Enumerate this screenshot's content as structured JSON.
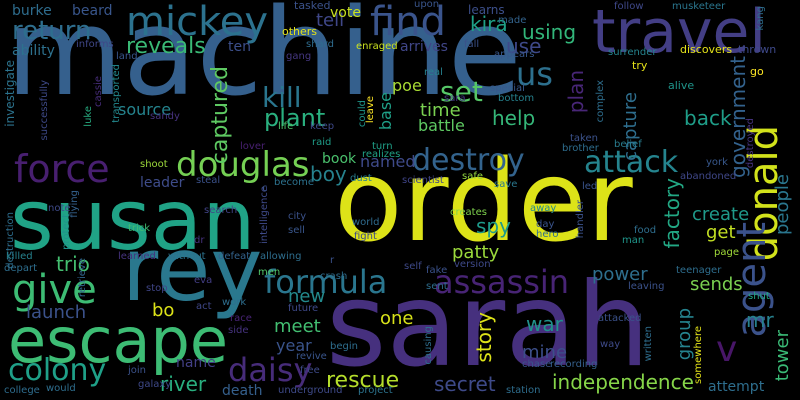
{
  "words": [
    {
      "t": "machine",
      "c": "#35608d"
    },
    {
      "t": "order",
      "c": "#dde318"
    },
    {
      "t": "sarah",
      "c": "#46307e"
    },
    {
      "t": "susan",
      "c": "#20a386"
    },
    {
      "t": "rey",
      "c": "#2a788e"
    },
    {
      "t": "travel",
      "c": "#433e85"
    },
    {
      "t": "escape",
      "c": "#3dbc74"
    },
    {
      "t": "mickey",
      "c": "#2c728e"
    },
    {
      "t": "find",
      "c": "#3a548c"
    },
    {
      "t": "donald",
      "c": "#d2e21b"
    },
    {
      "t": "agent",
      "c": "#3b528b"
    },
    {
      "t": "force",
      "c": "#481f70"
    },
    {
      "t": "douglas",
      "c": "#75d054"
    },
    {
      "t": "formula",
      "c": "#2a768e"
    },
    {
      "t": "give",
      "c": "#3dbc74"
    },
    {
      "t": "assassin",
      "c": "#482475"
    },
    {
      "t": "destroy",
      "c": "#33638d"
    },
    {
      "t": "attack",
      "c": "#25848e"
    },
    {
      "t": "colony",
      "c": "#1fa088"
    },
    {
      "t": "daisy",
      "c": "#472c7a"
    },
    {
      "t": "return",
      "c": "#2e6e8e"
    },
    {
      "t": "kill",
      "c": "#2a768e"
    },
    {
      "t": "us",
      "c": "#2d708e"
    },
    {
      "t": "set",
      "c": "#56c667"
    },
    {
      "t": "plant",
      "c": "#2ab07f"
    },
    {
      "t": "reveals",
      "c": "#3aba76"
    },
    {
      "t": "captured",
      "c": "#5ec962"
    },
    {
      "t": "government",
      "c": "#33628d"
    },
    {
      "t": "rescue",
      "c": "#b5de2b"
    },
    {
      "t": "secret",
      "c": "#3e4a89"
    },
    {
      "t": "independence",
      "c": "#86d549"
    },
    {
      "t": "river",
      "c": "#29af7f"
    },
    {
      "t": "kira",
      "c": "#1fa187"
    },
    {
      "t": "using",
      "c": "#32b67a"
    },
    {
      "t": "plan",
      "c": "#482677"
    },
    {
      "t": "spy",
      "c": "#1e9b8a"
    },
    {
      "t": "patty",
      "c": "#9bd93c"
    },
    {
      "t": "story",
      "c": "#dde318"
    },
    {
      "t": "war",
      "c": "#21918c"
    },
    {
      "t": "mine",
      "c": "#3c4f8a"
    },
    {
      "t": "help",
      "c": "#35b779"
    },
    {
      "t": "time",
      "c": "#7ad151"
    },
    {
      "t": "battle",
      "c": "#5ec962"
    },
    {
      "t": "poe",
      "c": "#a8db34"
    },
    {
      "t": "named",
      "c": "#3e4a89"
    },
    {
      "t": "boy",
      "c": "#26828e"
    },
    {
      "t": "book",
      "c": "#4ac16d"
    },
    {
      "t": "base",
      "c": "#1fa088"
    },
    {
      "t": "use",
      "c": "#3e4989"
    },
    {
      "t": "tell",
      "c": "#3f4788"
    },
    {
      "t": "arrives",
      "c": "#404688"
    },
    {
      "t": "back",
      "c": "#1f9e89"
    },
    {
      "t": "create",
      "c": "#1f9a8a"
    },
    {
      "t": "get",
      "c": "#c2df23"
    },
    {
      "t": "people",
      "c": "#2a768e"
    },
    {
      "t": "factory",
      "c": "#22a884"
    },
    {
      "t": "capture",
      "c": "#2e6e8e"
    },
    {
      "t": "sends",
      "c": "#7ad151"
    },
    {
      "t": "power",
      "c": "#2e6f8e"
    },
    {
      "t": "group",
      "c": "#25838e"
    },
    {
      "t": "mr",
      "c": "#26818e"
    },
    {
      "t": "tower",
      "c": "#3aba76"
    },
    {
      "t": "v",
      "c": "#481668"
    },
    {
      "t": "one",
      "c": "#d8e219"
    },
    {
      "t": "meet",
      "c": "#42be71"
    },
    {
      "t": "new",
      "c": "#238a8d"
    },
    {
      "t": "year",
      "c": "#3a548c"
    },
    {
      "t": "bo",
      "c": "#dde318"
    },
    {
      "t": "trio",
      "c": "#44bf70"
    },
    {
      "t": "launch",
      "c": "#3b528b"
    },
    {
      "t": "source",
      "c": "#25848e"
    },
    {
      "t": "leader",
      "c": "#3e4c8a"
    },
    {
      "t": "name",
      "c": "#423f85"
    },
    {
      "t": "ability",
      "c": "#2d718e"
    },
    {
      "t": "burke",
      "c": "#2e6d8e"
    },
    {
      "t": "beard",
      "c": "#39568c"
    },
    {
      "t": "ten",
      "c": "#3c4f8a"
    },
    {
      "t": "vote",
      "c": "#c8e020"
    },
    {
      "t": "tasked",
      "c": "#3b528b"
    },
    {
      "t": "others",
      "c": "#e5e419"
    },
    {
      "t": "learns",
      "c": "#3c4f8a"
    },
    {
      "t": "made",
      "c": "#33638d"
    },
    {
      "t": "follow",
      "c": "#3f4889"
    },
    {
      "t": "musketeer",
      "c": "#2a768e"
    },
    {
      "t": "kang",
      "c": "#2e6e8e"
    },
    {
      "t": "surrender",
      "c": "#25848e"
    },
    {
      "t": "discovers",
      "c": "#e5e419"
    },
    {
      "t": "thrown",
      "c": "#3e4989"
    },
    {
      "t": "alive",
      "c": "#1f958b"
    },
    {
      "t": "try",
      "c": "#e7e419"
    },
    {
      "t": "go",
      "c": "#fde725"
    },
    {
      "t": "upon",
      "c": "#39558c"
    },
    {
      "t": "fall",
      "c": "#3b528b"
    },
    {
      "t": "appears",
      "c": "#38588c"
    },
    {
      "t": "enraged",
      "c": "#cae11f"
    },
    {
      "t": "shard",
      "c": "#2f6c8e"
    },
    {
      "t": "gang",
      "c": "#453781"
    },
    {
      "t": "land",
      "c": "#39568c"
    },
    {
      "t": "informs",
      "c": "#3f4788"
    },
    {
      "t": "investigate",
      "c": "#2c738e"
    },
    {
      "t": "successfully",
      "c": "#3e4a89"
    },
    {
      "t": "cassie",
      "c": "#472d7b"
    },
    {
      "t": "luke",
      "c": "#27ad81"
    },
    {
      "t": "transported",
      "c": "#23898e"
    },
    {
      "t": "sandy",
      "c": "#46327e"
    },
    {
      "t": "lover",
      "c": "#482071"
    },
    {
      "t": "life",
      "c": "#4ec36b"
    },
    {
      "t": "keep",
      "c": "#3e4989"
    },
    {
      "t": "raid",
      "c": "#1f9e89"
    },
    {
      "t": "could",
      "c": "#1f958b"
    },
    {
      "t": "leave",
      "c": "#fde725"
    },
    {
      "t": "real",
      "c": "#26818e"
    },
    {
      "t": "sara",
      "c": "#453882"
    },
    {
      "t": "special",
      "c": "#38598c"
    },
    {
      "t": "bottom",
      "c": "#26828e"
    },
    {
      "t": "complex",
      "c": "#2e6e8e"
    },
    {
      "t": "taken",
      "c": "#3b528b"
    },
    {
      "t": "brother",
      "c": "#2e6d8e"
    },
    {
      "t": "belief",
      "c": "#287c8e"
    },
    {
      "t": "york",
      "c": "#38588c"
    },
    {
      "t": "abandoned",
      "c": "#3f4788"
    },
    {
      "t": "destroyed",
      "c": "#46337f"
    },
    {
      "t": "turn",
      "c": "#1fa088"
    },
    {
      "t": "realizes",
      "c": "#20a386"
    },
    {
      "t": "scientist",
      "c": "#404588"
    },
    {
      "t": "safe",
      "c": "#95d840"
    },
    {
      "t": "save",
      "c": "#2a788e"
    },
    {
      "t": "led",
      "c": "#3a548c"
    },
    {
      "t": "dust",
      "c": "#287d8e"
    },
    {
      "t": "shoot",
      "c": "#9dd93b"
    },
    {
      "t": "steal",
      "c": "#3b528b"
    },
    {
      "t": "become",
      "c": "#2c728e"
    },
    {
      "t": "note",
      "c": "#3e4a89"
    },
    {
      "t": "flying",
      "c": "#34618d"
    },
    {
      "t": "protect",
      "c": "#20928c"
    },
    {
      "t": "destruction",
      "c": "#2e6e8e"
    },
    {
      "t": "trick",
      "c": "#3fbc73"
    },
    {
      "t": "search",
      "c": "#414487"
    },
    {
      "t": "city",
      "c": "#3b528b"
    },
    {
      "t": "sell",
      "c": "#39568c"
    },
    {
      "t": "world",
      "c": "#2f6b8e"
    },
    {
      "t": "fight",
      "c": "#3e4a89"
    },
    {
      "t": "creates",
      "c": "#7fd34e"
    },
    {
      "t": "away",
      "c": "#23898e"
    },
    {
      "t": "day",
      "c": "#3a548c"
    },
    {
      "t": "hero",
      "c": "#2e6d8e"
    },
    {
      "t": "handler",
      "c": "#3b528b"
    },
    {
      "t": "man",
      "c": "#1f968b"
    },
    {
      "t": "food",
      "c": "#2e6e8e"
    },
    {
      "t": "page",
      "c": "#a0da39"
    },
    {
      "t": "teenager",
      "c": "#2e6e8e"
    },
    {
      "t": "leaving",
      "c": "#3b528b"
    },
    {
      "t": "shut",
      "c": "#22a884"
    },
    {
      "t": "killed",
      "c": "#26828e"
    },
    {
      "t": "depart",
      "c": "#2e6e8e"
    },
    {
      "t": "retrieve",
      "c": "#32648e"
    },
    {
      "t": "learned",
      "c": "#46337f"
    },
    {
      "t": "without",
      "c": "#2c738e"
    },
    {
      "t": "defeat",
      "c": "#33638d"
    },
    {
      "t": "allowing",
      "c": "#2e6e8e"
    },
    {
      "t": "intelligence",
      "c": "#3e4a89"
    },
    {
      "t": "men",
      "c": "#52c569"
    },
    {
      "t": "crash",
      "c": "#2e6d8e"
    },
    {
      "t": "self",
      "c": "#3e4989"
    },
    {
      "t": "fake",
      "c": "#3b528b"
    },
    {
      "t": "version",
      "c": "#3e4989"
    },
    {
      "t": "sent",
      "c": "#2e6e8e"
    },
    {
      "t": "stop",
      "c": "#404688"
    },
    {
      "t": "act",
      "c": "#3f4788"
    },
    {
      "t": "eva",
      "c": "#433e85"
    },
    {
      "t": "dr",
      "c": "#46327e"
    },
    {
      "t": "race",
      "c": "#482475"
    },
    {
      "t": "side",
      "c": "#46337f"
    },
    {
      "t": "work",
      "c": "#2e6e8e"
    },
    {
      "t": "future",
      "c": "#3e4989"
    },
    {
      "t": "revive",
      "c": "#39558c"
    },
    {
      "t": "free",
      "c": "#3e4a89"
    },
    {
      "t": "begin",
      "c": "#2e6e8e"
    },
    {
      "t": "chase",
      "c": "#3a548c"
    },
    {
      "t": "recording",
      "c": "#35608d"
    },
    {
      "t": "attacked",
      "c": "#3b528b"
    },
    {
      "t": "causing",
      "c": "#2e6e8e"
    },
    {
      "t": "written",
      "c": "#2e6e8e"
    },
    {
      "t": "way",
      "c": "#3e4a89"
    },
    {
      "t": "somewhere",
      "c": "#e5e419"
    },
    {
      "t": "attempt",
      "c": "#2e6e8e"
    },
    {
      "t": "death",
      "c": "#35608d"
    },
    {
      "t": "underground",
      "c": "#3e4a89"
    },
    {
      "t": "project",
      "c": "#2c738e"
    },
    {
      "t": "station",
      "c": "#2e6e8e"
    },
    {
      "t": "join",
      "c": "#3b528b"
    },
    {
      "t": "galaxy",
      "c": "#3e4989"
    },
    {
      "t": "would",
      "c": "#2e6e8e"
    },
    {
      "t": "college",
      "c": "#2e6d8e"
    },
    {
      "t": "c",
      "c": "#3b528b"
    },
    {
      "t": "r",
      "c": "#3b528b"
    }
  ]
}
